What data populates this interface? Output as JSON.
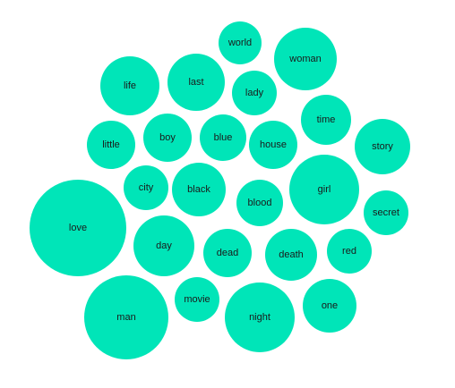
{
  "chart_data": {
    "type": "bubble",
    "color": "#00E5B8",
    "label_color": "#1a1a1a",
    "words": [
      {
        "label": "world",
        "size": 24
      },
      {
        "label": "woman",
        "size": 35
      },
      {
        "label": "life",
        "size": 33
      },
      {
        "label": "last",
        "size": 32
      },
      {
        "label": "lady",
        "size": 25
      },
      {
        "label": "time",
        "size": 28
      },
      {
        "label": "little",
        "size": 27
      },
      {
        "label": "boy",
        "size": 27
      },
      {
        "label": "blue",
        "size": 26
      },
      {
        "label": "house",
        "size": 27
      },
      {
        "label": "story",
        "size": 31
      },
      {
        "label": "city",
        "size": 25
      },
      {
        "label": "black",
        "size": 30
      },
      {
        "label": "blood",
        "size": 26
      },
      {
        "label": "girl",
        "size": 39
      },
      {
        "label": "secret",
        "size": 25
      },
      {
        "label": "love",
        "size": 54
      },
      {
        "label": "day",
        "size": 34
      },
      {
        "label": "dead",
        "size": 27
      },
      {
        "label": "death",
        "size": 29
      },
      {
        "label": "red",
        "size": 25
      },
      {
        "label": "movie",
        "size": 25
      },
      {
        "label": "man",
        "size": 47
      },
      {
        "label": "night",
        "size": 39
      },
      {
        "label": "one",
        "size": 30
      }
    ]
  }
}
